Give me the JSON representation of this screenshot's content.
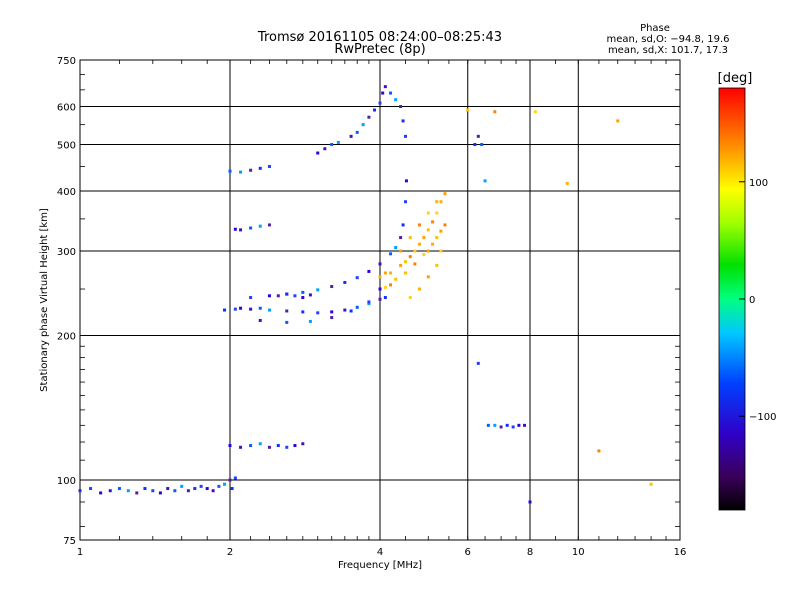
{
  "chart_data": {
    "type": "scatter",
    "title": "Tromsø 20161105 08:24:00–08:25:43",
    "subtitle": "RwPretec (8p)",
    "xlabel": "Frequency [MHz]",
    "ylabel": "Stationary phase Virtual Height [km]",
    "xscale": "log2",
    "yscale": "log",
    "xlim": [
      1,
      16
    ],
    "ylim": [
      75,
      750
    ],
    "xticks": [
      1,
      2,
      4,
      6,
      8,
      10,
      16
    ],
    "xtick_labels": [
      "1",
      "2",
      "4",
      "6",
      "8",
      "10",
      "16"
    ],
    "yticks": [
      75,
      100,
      200,
      300,
      400,
      500,
      600,
      750
    ],
    "ytick_labels": [
      "75",
      "100",
      "200",
      "300",
      "400",
      "500",
      "600",
      "750"
    ],
    "grid": true,
    "phase_info": {
      "heading": "Phase",
      "line1": "mean, sd,O: −94.8, 19.6",
      "line2": "mean, sd,X: 101.7, 17.3"
    },
    "colorbar": {
      "label": "[deg]",
      "range": [
        -180,
        180
      ],
      "ticks": [
        -100,
        0,
        100
      ],
      "tick_labels": [
        "−100",
        "0",
        "100"
      ]
    },
    "series": [
      {
        "points": [
          [
            1.0,
            95
          ],
          [
            1.05,
            96
          ],
          [
            1.1,
            94
          ],
          [
            1.15,
            95
          ],
          [
            1.2,
            96
          ],
          [
            1.25,
            95
          ],
          [
            1.3,
            94
          ],
          [
            1.35,
            96
          ],
          [
            1.4,
            95
          ],
          [
            1.45,
            94
          ],
          [
            1.5,
            96
          ],
          [
            1.55,
            95
          ],
          [
            1.6,
            97
          ],
          [
            1.65,
            95
          ],
          [
            1.7,
            96
          ],
          [
            1.75,
            97
          ],
          [
            1.8,
            96
          ],
          [
            1.85,
            95
          ],
          [
            1.9,
            97
          ],
          [
            1.95,
            98
          ],
          [
            2.0,
            100
          ],
          [
            2.02,
            96
          ],
          [
            2.05,
            101
          ],
          [
            2.0,
            118
          ],
          [
            2.1,
            117
          ],
          [
            2.2,
            118
          ],
          [
            2.3,
            119
          ],
          [
            2.4,
            117
          ],
          [
            2.5,
            118
          ],
          [
            2.6,
            117
          ],
          [
            2.7,
            118
          ],
          [
            2.8,
            119
          ],
          [
            2.0,
            440
          ],
          [
            2.1,
            438
          ],
          [
            2.2,
            442
          ],
          [
            2.3,
            446
          ],
          [
            2.4,
            450
          ],
          [
            2.05,
            333
          ],
          [
            2.1,
            332
          ],
          [
            2.2,
            335
          ],
          [
            2.3,
            338
          ],
          [
            2.4,
            340
          ],
          [
            1.95,
            226
          ],
          [
            2.05,
            227
          ],
          [
            2.1,
            228
          ],
          [
            2.2,
            227
          ],
          [
            2.3,
            228
          ],
          [
            2.4,
            226
          ],
          [
            2.6,
            225
          ],
          [
            2.8,
            224
          ],
          [
            3.0,
            223
          ],
          [
            3.2,
            224
          ],
          [
            3.4,
            226
          ],
          [
            3.6,
            229
          ],
          [
            3.8,
            233
          ],
          [
            4.0,
            238
          ],
          [
            4.1,
            240
          ],
          [
            2.2,
            240
          ],
          [
            2.4,
            242
          ],
          [
            2.6,
            244
          ],
          [
            2.8,
            246
          ],
          [
            3.0,
            249
          ],
          [
            3.2,
            253
          ],
          [
            3.4,
            258
          ],
          [
            3.6,
            264
          ],
          [
            3.8,
            272
          ],
          [
            4.0,
            282
          ],
          [
            4.2,
            296
          ],
          [
            4.3,
            305
          ],
          [
            4.4,
            320
          ],
          [
            4.45,
            340
          ],
          [
            4.5,
            380
          ],
          [
            4.52,
            420
          ],
          [
            2.3,
            215
          ],
          [
            2.6,
            213
          ],
          [
            2.9,
            214
          ],
          [
            3.2,
            218
          ],
          [
            3.5,
            225
          ],
          [
            3.8,
            235
          ],
          [
            4.0,
            250
          ],
          [
            3.5,
            520
          ],
          [
            3.6,
            530
          ],
          [
            3.7,
            550
          ],
          [
            3.8,
            570
          ],
          [
            3.9,
            590
          ],
          [
            4.0,
            610
          ],
          [
            4.05,
            640
          ],
          [
            4.1,
            660
          ],
          [
            4.2,
            640
          ],
          [
            4.3,
            620
          ],
          [
            4.4,
            600
          ],
          [
            4.45,
            560
          ],
          [
            4.5,
            520
          ],
          [
            3.0,
            480
          ],
          [
            3.1,
            490
          ],
          [
            3.2,
            500
          ],
          [
            3.3,
            505
          ],
          [
            2.5,
            242
          ],
          [
            2.6,
            244
          ],
          [
            2.7,
            242
          ],
          [
            2.8,
            240
          ],
          [
            2.9,
            243
          ],
          [
            6.6,
            130
          ],
          [
            6.8,
            130
          ],
          [
            7.0,
            129
          ],
          [
            7.2,
            130
          ],
          [
            7.4,
            129
          ],
          [
            7.6,
            130
          ],
          [
            7.8,
            130
          ],
          [
            6.4,
            500
          ],
          [
            6.5,
            420
          ],
          [
            6.3,
            520
          ],
          [
            6.2,
            500
          ],
          [
            6.3,
            175
          ],
          [
            8.0,
            90
          ]
        ]
      },
      {
        "points": [
          [
            4.4,
            280
          ],
          [
            4.5,
            285
          ],
          [
            4.6,
            292
          ],
          [
            4.7,
            300
          ],
          [
            4.8,
            310
          ],
          [
            4.9,
            320
          ],
          [
            5.0,
            332
          ],
          [
            5.1,
            345
          ],
          [
            5.2,
            360
          ],
          [
            5.3,
            380
          ],
          [
            5.4,
            395
          ],
          [
            4.3,
            262
          ],
          [
            4.2,
            255
          ],
          [
            4.1,
            252
          ],
          [
            4.2,
            270
          ],
          [
            4.4,
            300
          ],
          [
            4.6,
            320
          ],
          [
            4.8,
            340
          ],
          [
            5.0,
            360
          ],
          [
            5.2,
            380
          ],
          [
            5.0,
            300
          ],
          [
            5.2,
            320
          ],
          [
            5.4,
            340
          ],
          [
            5.3,
            300
          ],
          [
            4.0,
            265
          ],
          [
            4.1,
            270
          ],
          [
            4.5,
            270
          ],
          [
            4.7,
            282
          ],
          [
            4.9,
            295
          ],
          [
            5.1,
            310
          ],
          [
            5.3,
            330
          ],
          [
            6.0,
            590
          ],
          [
            6.8,
            585
          ],
          [
            8.2,
            585
          ],
          [
            9.5,
            415
          ],
          [
            12.0,
            560
          ],
          [
            14.0,
            98
          ],
          [
            11.0,
            115
          ],
          [
            4.6,
            240
          ],
          [
            4.8,
            250
          ],
          [
            5.0,
            265
          ],
          [
            5.2,
            280
          ]
        ]
      }
    ]
  }
}
